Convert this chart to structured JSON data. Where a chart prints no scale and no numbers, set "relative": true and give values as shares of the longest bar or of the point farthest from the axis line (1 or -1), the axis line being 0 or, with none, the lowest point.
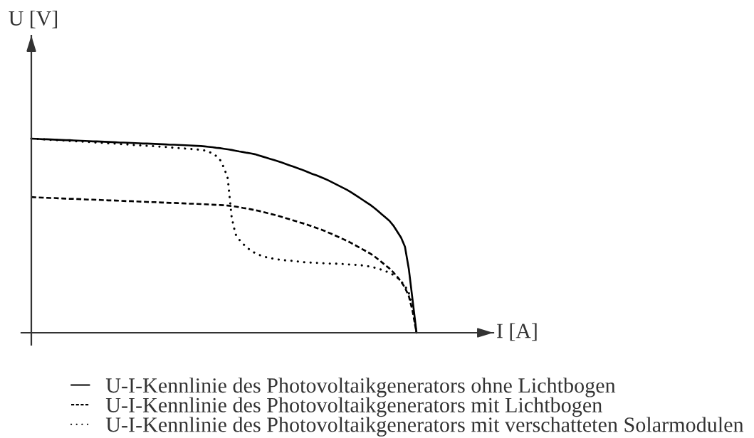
{
  "chart_data": {
    "type": "line",
    "xlabel": "I [A]",
    "annotations": [
      "U [V]"
    ],
    "relative": true,
    "tick_labels": false,
    "legend": "bottom",
    "categories": [
      null,
      null,
      null,
      null,
      null,
      null,
      null,
      null,
      null,
      null,
      null,
      null,
      null,
      null,
      null,
      null,
      null,
      null,
      null,
      null,
      null,
      null,
      null,
      null,
      null,
      null,
      null,
      null,
      null,
      null,
      null,
      null,
      null,
      null,
      null,
      null,
      null,
      null,
      null,
      null,
      null,
      null,
      null,
      null,
      null,
      null,
      null,
      null,
      null,
      null,
      null,
      null,
      null,
      null,
      null,
      null,
      null,
      null,
      null,
      null,
      null,
      null,
      null,
      null,
      null,
      null,
      null,
      null,
      null,
      null,
      null,
      null,
      null,
      null,
      null,
      null,
      null,
      null,
      null,
      null,
      null,
      null,
      null,
      null,
      null,
      null,
      null,
      null,
      null,
      null,
      null,
      null,
      null,
      null,
      null,
      null,
      null,
      null,
      null,
      null,
      null
    ],
    "series": [
      {
        "name": "U-I-Kennlinie des Photovoltaikgenerators ohne Lichtbogen",
        "color": "#000000",
        "line_style": "solid",
        "values": [
          1.0,
          0.999,
          0.998,
          0.997,
          0.997,
          0.996,
          0.995,
          0.994,
          0.993,
          0.992,
          0.992,
          0.991,
          0.99,
          0.989,
          0.988,
          0.987,
          0.986,
          0.986,
          0.985,
          0.984,
          0.983,
          0.982,
          0.981,
          0.98,
          0.98,
          0.979,
          0.978,
          0.977,
          0.976,
          0.975,
          0.975,
          0.974,
          0.973,
          0.972,
          0.971,
          0.97,
          0.969,
          0.969,
          0.968,
          0.967,
          0.966,
          0.965,
          0.964,
          0.963,
          0.962,
          0.96,
          0.958,
          0.956,
          0.953,
          0.951,
          0.948,
          0.945,
          0.942,
          0.938,
          0.934,
          0.931,
          0.927,
          0.924,
          0.92,
          0.914,
          0.908,
          0.902,
          0.896,
          0.89,
          0.884,
          0.877,
          0.87,
          0.863,
          0.856,
          0.849,
          0.842,
          0.834,
          0.826,
          0.818,
          0.811,
          0.803,
          0.795,
          0.786,
          0.776,
          0.766,
          0.756,
          0.746,
          0.736,
          0.724,
          0.711,
          0.698,
          0.685,
          0.672,
          0.659,
          0.644,
          0.627,
          0.61,
          0.593,
          0.576,
          0.552,
          0.521,
          0.49,
          0.443,
          0.329,
          0.165,
          0
        ]
      },
      {
        "name": "U-I-Kennlinie des Photovoltaikgenerators mit Lichtbogen",
        "color": "#000000",
        "line_style": "dashed",
        "values": [
          0.699,
          0.698,
          0.697,
          0.696,
          0.695,
          0.694,
          0.694,
          0.693,
          0.692,
          0.691,
          0.69,
          0.69,
          0.689,
          0.688,
          0.687,
          0.686,
          0.686,
          0.685,
          0.684,
          0.683,
          0.682,
          0.682,
          0.681,
          0.68,
          0.679,
          0.678,
          0.678,
          0.677,
          0.676,
          0.675,
          0.674,
          0.673,
          0.673,
          0.672,
          0.671,
          0.67,
          0.669,
          0.669,
          0.668,
          0.667,
          0.666,
          0.665,
          0.665,
          0.664,
          0.663,
          0.662,
          0.661,
          0.66,
          0.659,
          0.658,
          0.657,
          0.655,
          0.653,
          0.65,
          0.647,
          0.643,
          0.64,
          0.636,
          0.632,
          0.628,
          0.623,
          0.618,
          0.613,
          0.608,
          0.603,
          0.597,
          0.591,
          0.585,
          0.579,
          0.573,
          0.567,
          0.561,
          0.554,
          0.547,
          0.54,
          0.533,
          0.526,
          0.517,
          0.509,
          0.5,
          0.491,
          0.482,
          0.473,
          0.463,
          0.452,
          0.441,
          0.43,
          0.419,
          0.408,
          0.395,
          0.379,
          0.363,
          0.347,
          0.331,
          0.311,
          0.288,
          0.264,
          0.232,
          0.189,
          0.11,
          0
        ]
      },
      {
        "name": "U-I-Kennlinie des Photovoltaikgenerators mit verschatteten Solarmodulen",
        "color": "#000000",
        "line_style": "dotted",
        "values": [
          1.0,
          0.999,
          0.998,
          0.997,
          0.995,
          0.994,
          0.993,
          0.992,
          0.991,
          0.99,
          0.988,
          0.987,
          0.986,
          0.985,
          0.984,
          0.983,
          0.981,
          0.98,
          0.979,
          0.978,
          0.976,
          0.975,
          0.974,
          0.972,
          0.971,
          0.97,
          0.968,
          0.967,
          0.966,
          0.964,
          0.963,
          0.962,
          0.961,
          0.959,
          0.958,
          0.957,
          0.955,
          0.953,
          0.952,
          0.95,
          0.949,
          0.947,
          0.946,
          0.944,
          0.943,
          0.939,
          0.933,
          0.924,
          0.911,
          0.891,
          0.851,
          0.795,
          0.596,
          0.508,
          0.479,
          0.457,
          0.439,
          0.423,
          0.412,
          0.402,
          0.395,
          0.389,
          0.385,
          0.381,
          0.378,
          0.375,
          0.373,
          0.372,
          0.37,
          0.368,
          0.365,
          0.363,
          0.362,
          0.361,
          0.36,
          0.359,
          0.358,
          0.357,
          0.356,
          0.356,
          0.355,
          0.354,
          0.352,
          0.351,
          0.35,
          0.349,
          0.347,
          0.344,
          0.341,
          0.336,
          0.331,
          0.324,
          0.317,
          0.309,
          0.298,
          0.285,
          0.265,
          0.242,
          0.206,
          0.122,
          0
        ]
      }
    ]
  }
}
